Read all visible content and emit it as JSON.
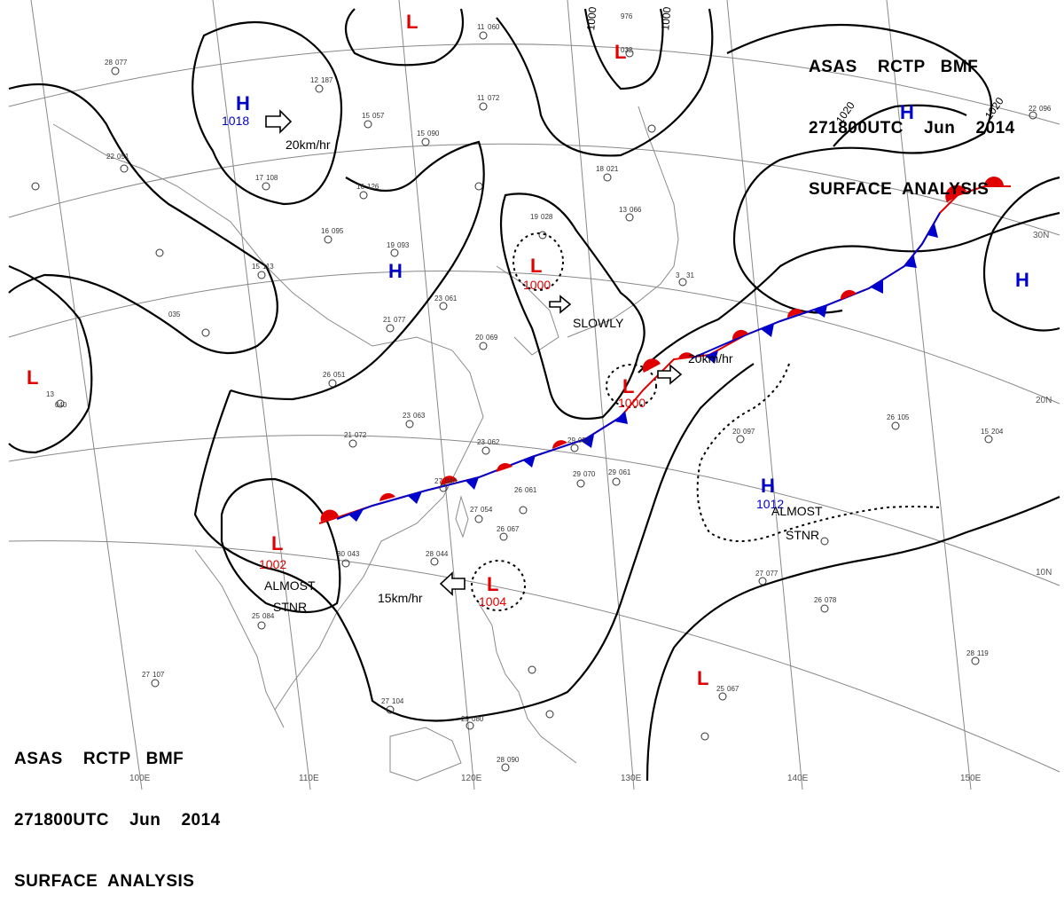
{
  "header": {
    "line1": "ASAS    RCTP   BMF",
    "line2": "271800UTC    Jun    2014",
    "line3": "SURFACE  ANALYSIS"
  },
  "footer": {
    "line1": "ASAS    RCTP   BMF",
    "line2": "271800UTC    Jun    2014",
    "line3": "SURFACE  ANALYSIS"
  },
  "pressure_systems": [
    {
      "type": "H",
      "pressure": "1018"
    },
    {
      "type": "L",
      "pressure": ""
    },
    {
      "type": "L",
      "pressure": ""
    },
    {
      "type": "H",
      "pressure": ""
    },
    {
      "type": "H",
      "pressure": ""
    },
    {
      "type": "L",
      "pressure": "1000"
    },
    {
      "type": "L",
      "pressure": "1000"
    },
    {
      "type": "L",
      "pressure": ""
    },
    {
      "type": "H",
      "pressure": ""
    },
    {
      "type": "L",
      "pressure": "1002"
    },
    {
      "type": "L",
      "pressure": "1004"
    },
    {
      "type": "H",
      "pressure": "1012"
    },
    {
      "type": "L",
      "pressure": ""
    }
  ],
  "motion_labels": {
    "h1018": "20km/hr",
    "l1000_north": "SLOWLY",
    "l1000_south": "20km/hr",
    "l1004": "15km/hr"
  },
  "status_labels": {
    "l1002_line1": "ALMOST",
    "l1002_line2": "STNR",
    "h1012_line1": "ALMOST",
    "h1012_line2": "STNR"
  },
  "isobar_labels": [
    "1000",
    "1000",
    "1020",
    "1020"
  ],
  "grid_labels": {
    "lat": [
      "30N",
      "20N",
      "10N"
    ],
    "lon": [
      "100E",
      "110E",
      "120E",
      "130E",
      "140E",
      "150E"
    ]
  },
  "station_numbers": [
    "28",
    "077",
    "22",
    "051",
    "17",
    "108",
    "12",
    "187",
    "15",
    "057",
    "11",
    "060",
    "976",
    "032",
    "15",
    "090",
    "11",
    "072",
    "18",
    "021",
    "13",
    "066",
    "16",
    "126",
    "16",
    "095",
    "19",
    "093",
    "15",
    "113",
    "19",
    "028",
    "23",
    "061",
    "21",
    "077",
    "20",
    "069",
    "26",
    "051",
    "23",
    "063",
    "21",
    "072",
    "23",
    "062",
    "29",
    "052",
    "27",
    "046",
    "29",
    "070",
    "26",
    "061",
    "27",
    "054",
    "26",
    "067",
    "28",
    "044",
    "29",
    "061",
    "30",
    "043",
    "25",
    "084",
    "29",
    "080",
    "27",
    "104",
    "27",
    "107",
    "28",
    "090",
    "27",
    "077",
    "26",
    "078",
    "25",
    "067",
    "28",
    "119",
    "26",
    "105",
    "20",
    "097",
    "15",
    "204",
    "22",
    "096",
    "3",
    "31",
    "035",
    "13",
    "040"
  ],
  "colors": {
    "isobar": "#000000",
    "warm_front": "#e00000",
    "cold_front": "#0000cc",
    "low": "#e00000",
    "high": "#0000cc",
    "grid": "#777777",
    "coast": "#8a8a8a"
  }
}
